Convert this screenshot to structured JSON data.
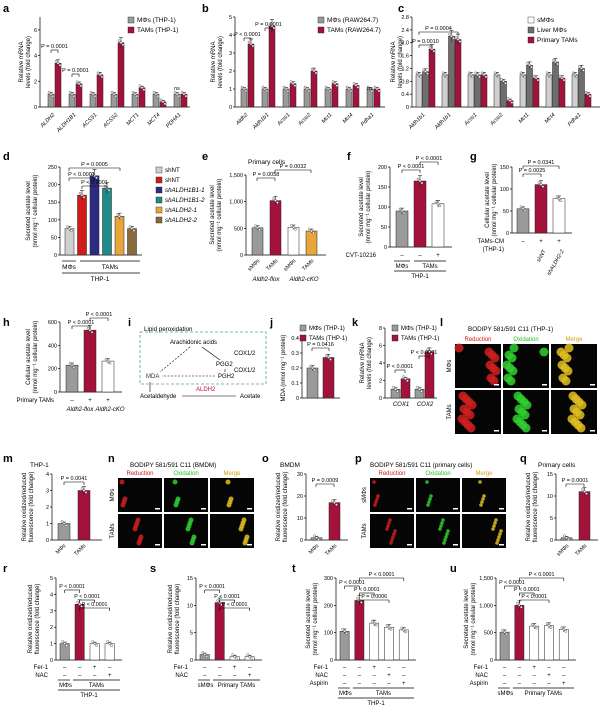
{
  "colors": {
    "gray": "#9a9a9a",
    "red": "#a3123a",
    "white": "#ffffff",
    "lightgray": "#cfcfcf",
    "darkgray": "#6e6e6e",
    "brightred": "#d11a1a",
    "navy": "#2d2c84",
    "teal": "#1f8a86",
    "orange": "#e7a63a",
    "brown": "#8a6a3a",
    "cyan": "#2ea6c9",
    "green": "#27c227",
    "gold": "#d7a20d",
    "dashed_box": "#47a7a7",
    "aldh2_text": "#c0152e"
  },
  "panel_letters": [
    "a",
    "b",
    "c",
    "d",
    "e",
    "f",
    "g",
    "h",
    "i",
    "j",
    "k",
    "l",
    "m",
    "n",
    "o",
    "p",
    "q",
    "r",
    "s",
    "t",
    "u"
  ],
  "panel_a": {
    "ylabel": "Relative mRNA levels (fold change)",
    "legend": [
      "MΦs (THP-1)",
      "TAMs (THP-1)"
    ],
    "categories": [
      "ALDH2",
      "ALDH1B1",
      "ACSS1",
      "ACSS2",
      "MCT1",
      "MCT4",
      "PDHA1"
    ],
    "yticks": [
      "0",
      "2",
      "4",
      "6"
    ],
    "pvals": [
      "P = 0.0001",
      "P = 0.0001"
    ],
    "ns": "ns"
  },
  "panel_b": {
    "ylabel": "Relative mRNA levels (fold change)",
    "legend": [
      "MΦs (RAW264.7)",
      "TAMs (RAW264.7)"
    ],
    "categories": [
      "Aldh2",
      "Aldh1b1",
      "Acss1",
      "Acss2",
      "Mct1",
      "Mct4",
      "Pdha1"
    ],
    "yticks": [
      "0",
      "1",
      "2",
      "3",
      "4",
      "5"
    ],
    "pvals": [
      "P < 0.0001",
      "P = 0.0001"
    ],
    "ns": "ns"
  },
  "panel_c": {
    "ylabel": "Relative mRNA levels (fold change)",
    "legend": [
      "sMΦs",
      "Liver MΦs",
      "Primary TAMs"
    ],
    "categories": [
      "Aldh1b1",
      "Aldh1b1",
      "Acss1",
      "Acss2",
      "Mct1",
      "Mct4",
      "Pdha1"
    ],
    "yticks": [
      "0",
      "0.4",
      "0.8",
      "1.2",
      "1.6",
      "2.0",
      "2.4",
      "2.8"
    ],
    "pvals": [
      "P = 0.0010",
      "P = 0.0004"
    ]
  },
  "panel_d": {
    "ylabel": "Secreted acetate level (nmol mg⁻¹ cellular protein)",
    "yticks": [
      "0",
      "50",
      "100",
      "150",
      "200",
      "250"
    ],
    "legend": [
      "shNT",
      "shNT",
      "shALDH1B1-1",
      "shALDH1B1-2",
      "shALDH2-1",
      "shALDH2-2"
    ],
    "pvals": [
      "P < 0.0001",
      "P = 0.0005",
      "P < 0.0001"
    ],
    "groups": [
      "MΦs",
      "TAMs"
    ],
    "cellline": "THP-1"
  },
  "panel_e": {
    "ylabel": "Secreted acetate level (nmol mg⁻¹ cellular protein)",
    "title": "Primary cells",
    "yticks": [
      "0",
      "500",
      "1,000",
      "1,500"
    ],
    "pvals": [
      "P = 0.0058",
      "P = 0.0032"
    ],
    "categories": [
      "sMΦs",
      "TAMs",
      "sMΦs",
      "TAMs"
    ],
    "genotypes": [
      "Aldh2-flox",
      "Aldh2-cKO"
    ]
  },
  "panel_f": {
    "ylabel": "Secreted acetate level (nmol mg⁻¹ cellular protein)",
    "yticks": [
      "0",
      "50",
      "100",
      "150",
      "200"
    ],
    "pvals": [
      "P < 0.0001",
      "P < 0.0001"
    ],
    "groups": [
      "MΦs",
      "TAMs"
    ],
    "treatment_label": "CVT-10216",
    "treatment_signs": [
      "–",
      "–",
      "+"
    ],
    "cellline": "THP-1"
  },
  "panel_g": {
    "ylabel": "Cellular acetate level (nmol mg⁻¹ cellular protein)",
    "yticks": [
      "0",
      "50",
      "100",
      "150"
    ],
    "pvals": [
      "P = 0.0341",
      "P = 0.0025"
    ],
    "treatment_label": "TAMs-CM",
    "treatment_sub": "(THP-1)",
    "treatment_signs": [
      "–",
      "+",
      "+"
    ],
    "categories": [
      "shNT",
      "shALDH2-2"
    ]
  },
  "panel_h": {
    "ylabel": "Cellular acetate level (nmol mg⁻¹ cellular protein)",
    "yticks": [
      "0",
      "200",
      "400",
      "600"
    ],
    "pvals": [
      "P < 0.0001",
      "P < 0.0001"
    ],
    "treatment_label": "Primary TAMs",
    "treatment_signs": [
      "–",
      "+",
      "+"
    ],
    "genotypes": [
      "Aldh2-flox",
      "Aldh2-cKO"
    ]
  },
  "panel_i": {
    "title": "Lipid peroxidation",
    "nodes": [
      "Arachidonic acids",
      "COX1/2",
      "PGG2",
      "COX1/2",
      "MDA",
      "PGH2",
      "Acetaldehyde",
      "ALDH2",
      "Acetate"
    ]
  },
  "panel_j": {
    "ylabel": "MDA (nmol mg⁻¹ protein)",
    "legend": [
      "MΦs (THP-1)",
      "TAMs (THP-1)"
    ],
    "yticks": [
      "0",
      "0.1",
      "0.2",
      "0.3",
      "0.4"
    ],
    "pvals": [
      "P = 0.0416"
    ]
  },
  "panel_k": {
    "ylabel": "Relative mRNA levels (fold change)",
    "legend": [
      "MΦs (THP-1)",
      "TAMs (THP-1)"
    ],
    "yticks": [
      "0",
      "2",
      "4",
      "6",
      "8"
    ],
    "categories": [
      "COX1",
      "COX2"
    ],
    "pvals": [
      "P < 0.0001",
      "P < 0.0001"
    ]
  },
  "panel_l": {
    "title": "BODIPY 581/591 C11 (THP-1)",
    "channels": [
      "Reduction",
      "Oxidation",
      "Merge"
    ],
    "rows": [
      "MΦs",
      "TAMs"
    ]
  },
  "panel_m": {
    "title": "THP-1",
    "ylabel": "Relative oxidized/reduced fluorescence (fold change)",
    "yticks": [
      "0",
      "1",
      "2",
      "3",
      "4"
    ],
    "pvals": [
      "P = 0.0041"
    ],
    "categories": [
      "MΦs",
      "TAMs"
    ]
  },
  "panel_n": {
    "title": "BODIPY 581/591 C11 (BMDM)",
    "channels": [
      "Reduction",
      "Oxidation",
      "Merge"
    ],
    "rows": [
      "MΦs",
      "TAMs"
    ]
  },
  "panel_o": {
    "title": "BMDM",
    "ylabel": "Relative oxidized/reduced fluorescence (fold change)",
    "yticks": [
      "0",
      "10",
      "20",
      "30"
    ],
    "pvals": [
      "P = 0.0009"
    ],
    "categories": [
      "MΦs",
      "TAMs"
    ]
  },
  "panel_p": {
    "title": "BODIPY 581/591 C11 (primary cells)",
    "channels": [
      "Reduction",
      "Oxidation",
      "Merge"
    ],
    "rows": [
      "sMΦs",
      "TAMs"
    ]
  },
  "panel_q": {
    "title": "Primary cells",
    "ylabel": "Relative oxidized/reduced fluorescence (fold change)",
    "yticks": [
      "0",
      "5",
      "10",
      "15"
    ],
    "pvals": [
      "P = 0.0001"
    ],
    "categories": [
      "sMΦs",
      "TAMs"
    ]
  },
  "panel_r": {
    "ylabel": "Relative oxidized/reduced fluorescence (fold change)",
    "yticks": [
      "0",
      "1",
      "2",
      "3",
      "4",
      "5"
    ],
    "pvals": [
      "P < 0.0001",
      "P < 0.0001",
      "P < 0.0001"
    ],
    "rows": [
      {
        "label": "Fer-1",
        "signs": [
          "–",
          "–",
          "+",
          "–"
        ]
      },
      {
        "label": "NAC",
        "signs": [
          "–",
          "–",
          "–",
          "+"
        ]
      }
    ],
    "groups": [
      "MΦs",
      "TAMs"
    ],
    "cellline": "THP-1"
  },
  "panel_s": {
    "ylabel": "Relative oxidized/reduced fluorescence (fold change)",
    "yticks": [
      "0",
      "5",
      "10",
      "15"
    ],
    "pvals": [
      "P < 0.0001",
      "P < 0.0001",
      "P < 0.0001"
    ],
    "rows": [
      {
        "label": "Fer-1",
        "signs": [
          "–",
          "–",
          "+",
          "–"
        ]
      },
      {
        "label": "NAC",
        "signs": [
          "–",
          "–",
          "–",
          "+"
        ]
      }
    ],
    "groups": [
      "sMΦs",
      "Primary TAMs"
    ]
  },
  "panel_t": {
    "ylabel": "Secreted acetate level (nmol mg⁻¹ cellular protein)",
    "yticks": [
      "0",
      "100",
      "200",
      "300"
    ],
    "pvals": [
      "P < 0.0001",
      "P < 0.0001",
      "P < 0.0001",
      "P = 0.0006"
    ],
    "rows": [
      {
        "label": "Fer-1",
        "signs": [
          "–",
          "–",
          "+",
          "–",
          "–"
        ]
      },
      {
        "label": "NAC",
        "signs": [
          "–",
          "–",
          "–",
          "+",
          "–"
        ]
      },
      {
        "label": "Aspirin",
        "signs": [
          "–",
          "–",
          "–",
          "–",
          "+"
        ]
      }
    ],
    "groups": [
      "MΦs",
      "TAMs"
    ],
    "cellline": "THP-1"
  },
  "panel_u": {
    "ylabel": "Secreted acetate level (nmol mg⁻¹ cellular protein)",
    "yticks": [
      "0",
      "500",
      "1,000",
      "1,500"
    ],
    "pvals": [
      "P < 0.0001",
      "P < 0.0001",
      "P < 0.0001",
      "P < 0.0001"
    ],
    "rows": [
      {
        "label": "Fer-1",
        "signs": [
          "–",
          "–",
          "+",
          "–",
          "–"
        ]
      },
      {
        "label": "NAC",
        "signs": [
          "–",
          "–",
          "–",
          "+",
          "–"
        ]
      },
      {
        "label": "Aspirin",
        "signs": [
          "–",
          "–",
          "–",
          "–",
          "+"
        ]
      }
    ],
    "groups": [
      "sMΦs",
      "Primary TAMs"
    ]
  },
  "chart_data": [
    {
      "panel": "a",
      "type": "bar",
      "categories": [
        "ALDH2",
        "ALDH1B1",
        "ACSS1",
        "ACSS2",
        "MCT1",
        "MCT4",
        "PDHA1"
      ],
      "series": [
        {
          "name": "MΦs (THP-1)",
          "values": [
            1,
            1,
            1,
            1,
            1,
            1,
            1
          ]
        },
        {
          "name": "TAMs (THP-1)",
          "values": [
            3.4,
            1.8,
            2.5,
            5.0,
            1.5,
            0.4,
            1.0
          ]
        }
      ],
      "ylim": [
        0,
        7
      ]
    },
    {
      "panel": "b",
      "type": "bar",
      "categories": [
        "Aldh2",
        "Aldh1b1",
        "Acss1",
        "Acss2",
        "Mct1",
        "Mct4",
        "Pdha1"
      ],
      "series": [
        {
          "name": "MΦs (RAW264.7)",
          "values": [
            1,
            1,
            1,
            1,
            1,
            1,
            1
          ]
        },
        {
          "name": "TAMs (RAW264.7)",
          "values": [
            3.5,
            4.5,
            1.3,
            2.0,
            1.3,
            1.2,
            1.0
          ]
        }
      ],
      "ylim": [
        0,
        5
      ]
    },
    {
      "panel": "c",
      "type": "bar",
      "categories": [
        "Aldh1b1",
        "Aldh1b1",
        "Acss1",
        "Acss2",
        "Mct1",
        "Mct4",
        "Pdha1"
      ],
      "series": [
        {
          "name": "sMΦs",
          "values": [
            1,
            1,
            1,
            1,
            1,
            1,
            1
          ]
        },
        {
          "name": "Liver MΦs",
          "values": [
            1.1,
            2.2,
            1.0,
            0.8,
            1.3,
            1.4,
            1.2
          ]
        },
        {
          "name": "Primary TAMs",
          "values": [
            1.8,
            2.1,
            1.0,
            0.2,
            0.9,
            0.9,
            0.4
          ]
        }
      ],
      "ylim": [
        0,
        2.8
      ]
    },
    {
      "panel": "d",
      "type": "bar",
      "categories": [
        "shNT",
        "shNT",
        "shALDH1B1-1",
        "shALDH1B1-2",
        "shALDH2-1",
        "shALDH2-2"
      ],
      "values": [
        75,
        170,
        225,
        190,
        110,
        75
      ],
      "ylim": [
        0,
        250
      ]
    },
    {
      "panel": "e",
      "type": "bar",
      "categories": [
        "sMΦs",
        "TAMs",
        "sMΦs",
        "TAMs"
      ],
      "values": [
        510,
        1020,
        520,
        450
      ],
      "ylim": [
        0,
        1500
      ]
    },
    {
      "panel": "f",
      "type": "bar",
      "categories": [
        "MΦs",
        "TAMs –",
        "TAMs +"
      ],
      "values": [
        90,
        165,
        108
      ],
      "ylim": [
        0,
        200
      ]
    },
    {
      "panel": "g",
      "type": "bar",
      "categories": [
        "–",
        "shNT",
        "shALDH2-2"
      ],
      "values": [
        55,
        110,
        78
      ],
      "ylim": [
        0,
        150
      ]
    },
    {
      "panel": "h",
      "type": "bar",
      "categories": [
        "Aldh2-flox –",
        "Aldh2-flox +",
        "Aldh2-cKO +"
      ],
      "values": [
        230,
        530,
        265
      ],
      "ylim": [
        0,
        600
      ]
    },
    {
      "panel": "j",
      "type": "bar",
      "categories": [
        "MΦs (THP-1)",
        "TAMs (THP-1)"
      ],
      "values": [
        0.2,
        0.27
      ],
      "ylim": [
        0,
        0.4
      ]
    },
    {
      "panel": "k",
      "type": "bar",
      "categories": [
        "COX1",
        "COX2"
      ],
      "series": [
        {
          "name": "MΦs (THP-1)",
          "values": [
            1,
            1
          ]
        },
        {
          "name": "TAMs (THP-1)",
          "values": [
            2.2,
            5.3
          ]
        }
      ],
      "ylim": [
        0,
        8
      ]
    },
    {
      "panel": "m",
      "type": "bar",
      "categories": [
        "MΦs",
        "TAMs"
      ],
      "values": [
        1,
        3
      ],
      "ylim": [
        0,
        4
      ]
    },
    {
      "panel": "o",
      "type": "bar",
      "categories": [
        "MΦs",
        "TAMs"
      ],
      "values": [
        1,
        17
      ],
      "ylim": [
        0,
        30
      ]
    },
    {
      "panel": "q",
      "type": "bar",
      "categories": [
        "sMΦs",
        "TAMs"
      ],
      "values": [
        0.5,
        11
      ],
      "ylim": [
        0,
        15
      ]
    },
    {
      "panel": "r",
      "type": "bar",
      "categories": [
        "MΦs",
        "TAMs",
        "TAMs Fer-1",
        "TAMs NAC"
      ],
      "values": [
        1,
        3.4,
        1,
        1
      ],
      "ylim": [
        0,
        5
      ]
    },
    {
      "panel": "s",
      "type": "bar",
      "categories": [
        "sMΦs",
        "Primary TAMs",
        "Primary TAMs Fer-1",
        "Primary TAMs NAC"
      ],
      "values": [
        1,
        10.5,
        0.6,
        0.6
      ],
      "ylim": [
        0,
        15
      ]
    },
    {
      "panel": "t",
      "type": "bar",
      "categories": [
        "MΦs",
        "TAMs",
        "TAMs Fer-1",
        "TAMs NAC",
        "TAMs Aspirin"
      ],
      "values": [
        105,
        218,
        135,
        120,
        110
      ],
      "ylim": [
        0,
        300
      ]
    },
    {
      "panel": "u",
      "type": "bar",
      "categories": [
        "sMΦs",
        "Primary TAMs",
        "Primary TAMs Fer-1",
        "Primary TAMs NAC",
        "Primary TAMs Aspirin"
      ],
      "values": [
        510,
        1000,
        620,
        630,
        560
      ],
      "ylim": [
        0,
        1500
      ]
    }
  ]
}
